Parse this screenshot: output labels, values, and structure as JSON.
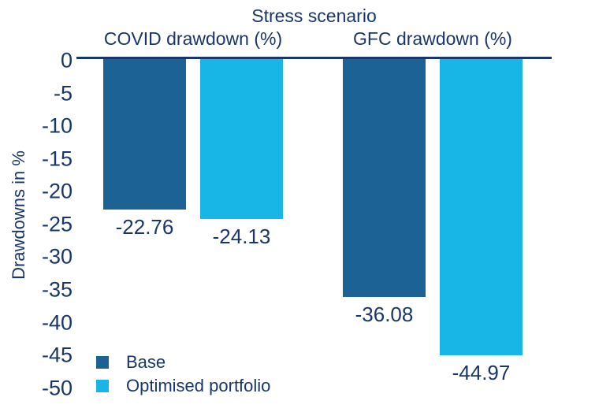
{
  "chart_data": {
    "type": "bar",
    "title": "Stress scenario",
    "categories": [
      "COVID drawdown (%)",
      "GFC drawdown (%)"
    ],
    "series": [
      {
        "name": "Base",
        "color": "#1d6294",
        "values": [
          -22.76,
          -36.08
        ]
      },
      {
        "name": "Optimised portfolio",
        "color": "#18b6e6",
        "values": [
          -24.13,
          -44.97
        ]
      }
    ],
    "data_labels": [
      "-22.76",
      "-24.13",
      "-36.08",
      "-44.97"
    ],
    "xlabel": "",
    "ylabel": "Drawdowns in %",
    "ylim": [
      0,
      -50
    ],
    "yticks": [
      0,
      -5,
      -10,
      -15,
      -20,
      -25,
      -30,
      -35,
      -40,
      -45,
      -50
    ],
    "grid": false,
    "legend_position": "bottom-left",
    "text_color": "#18366b",
    "axis_line_color": "#18366b",
    "background_color": "#ffffff"
  }
}
